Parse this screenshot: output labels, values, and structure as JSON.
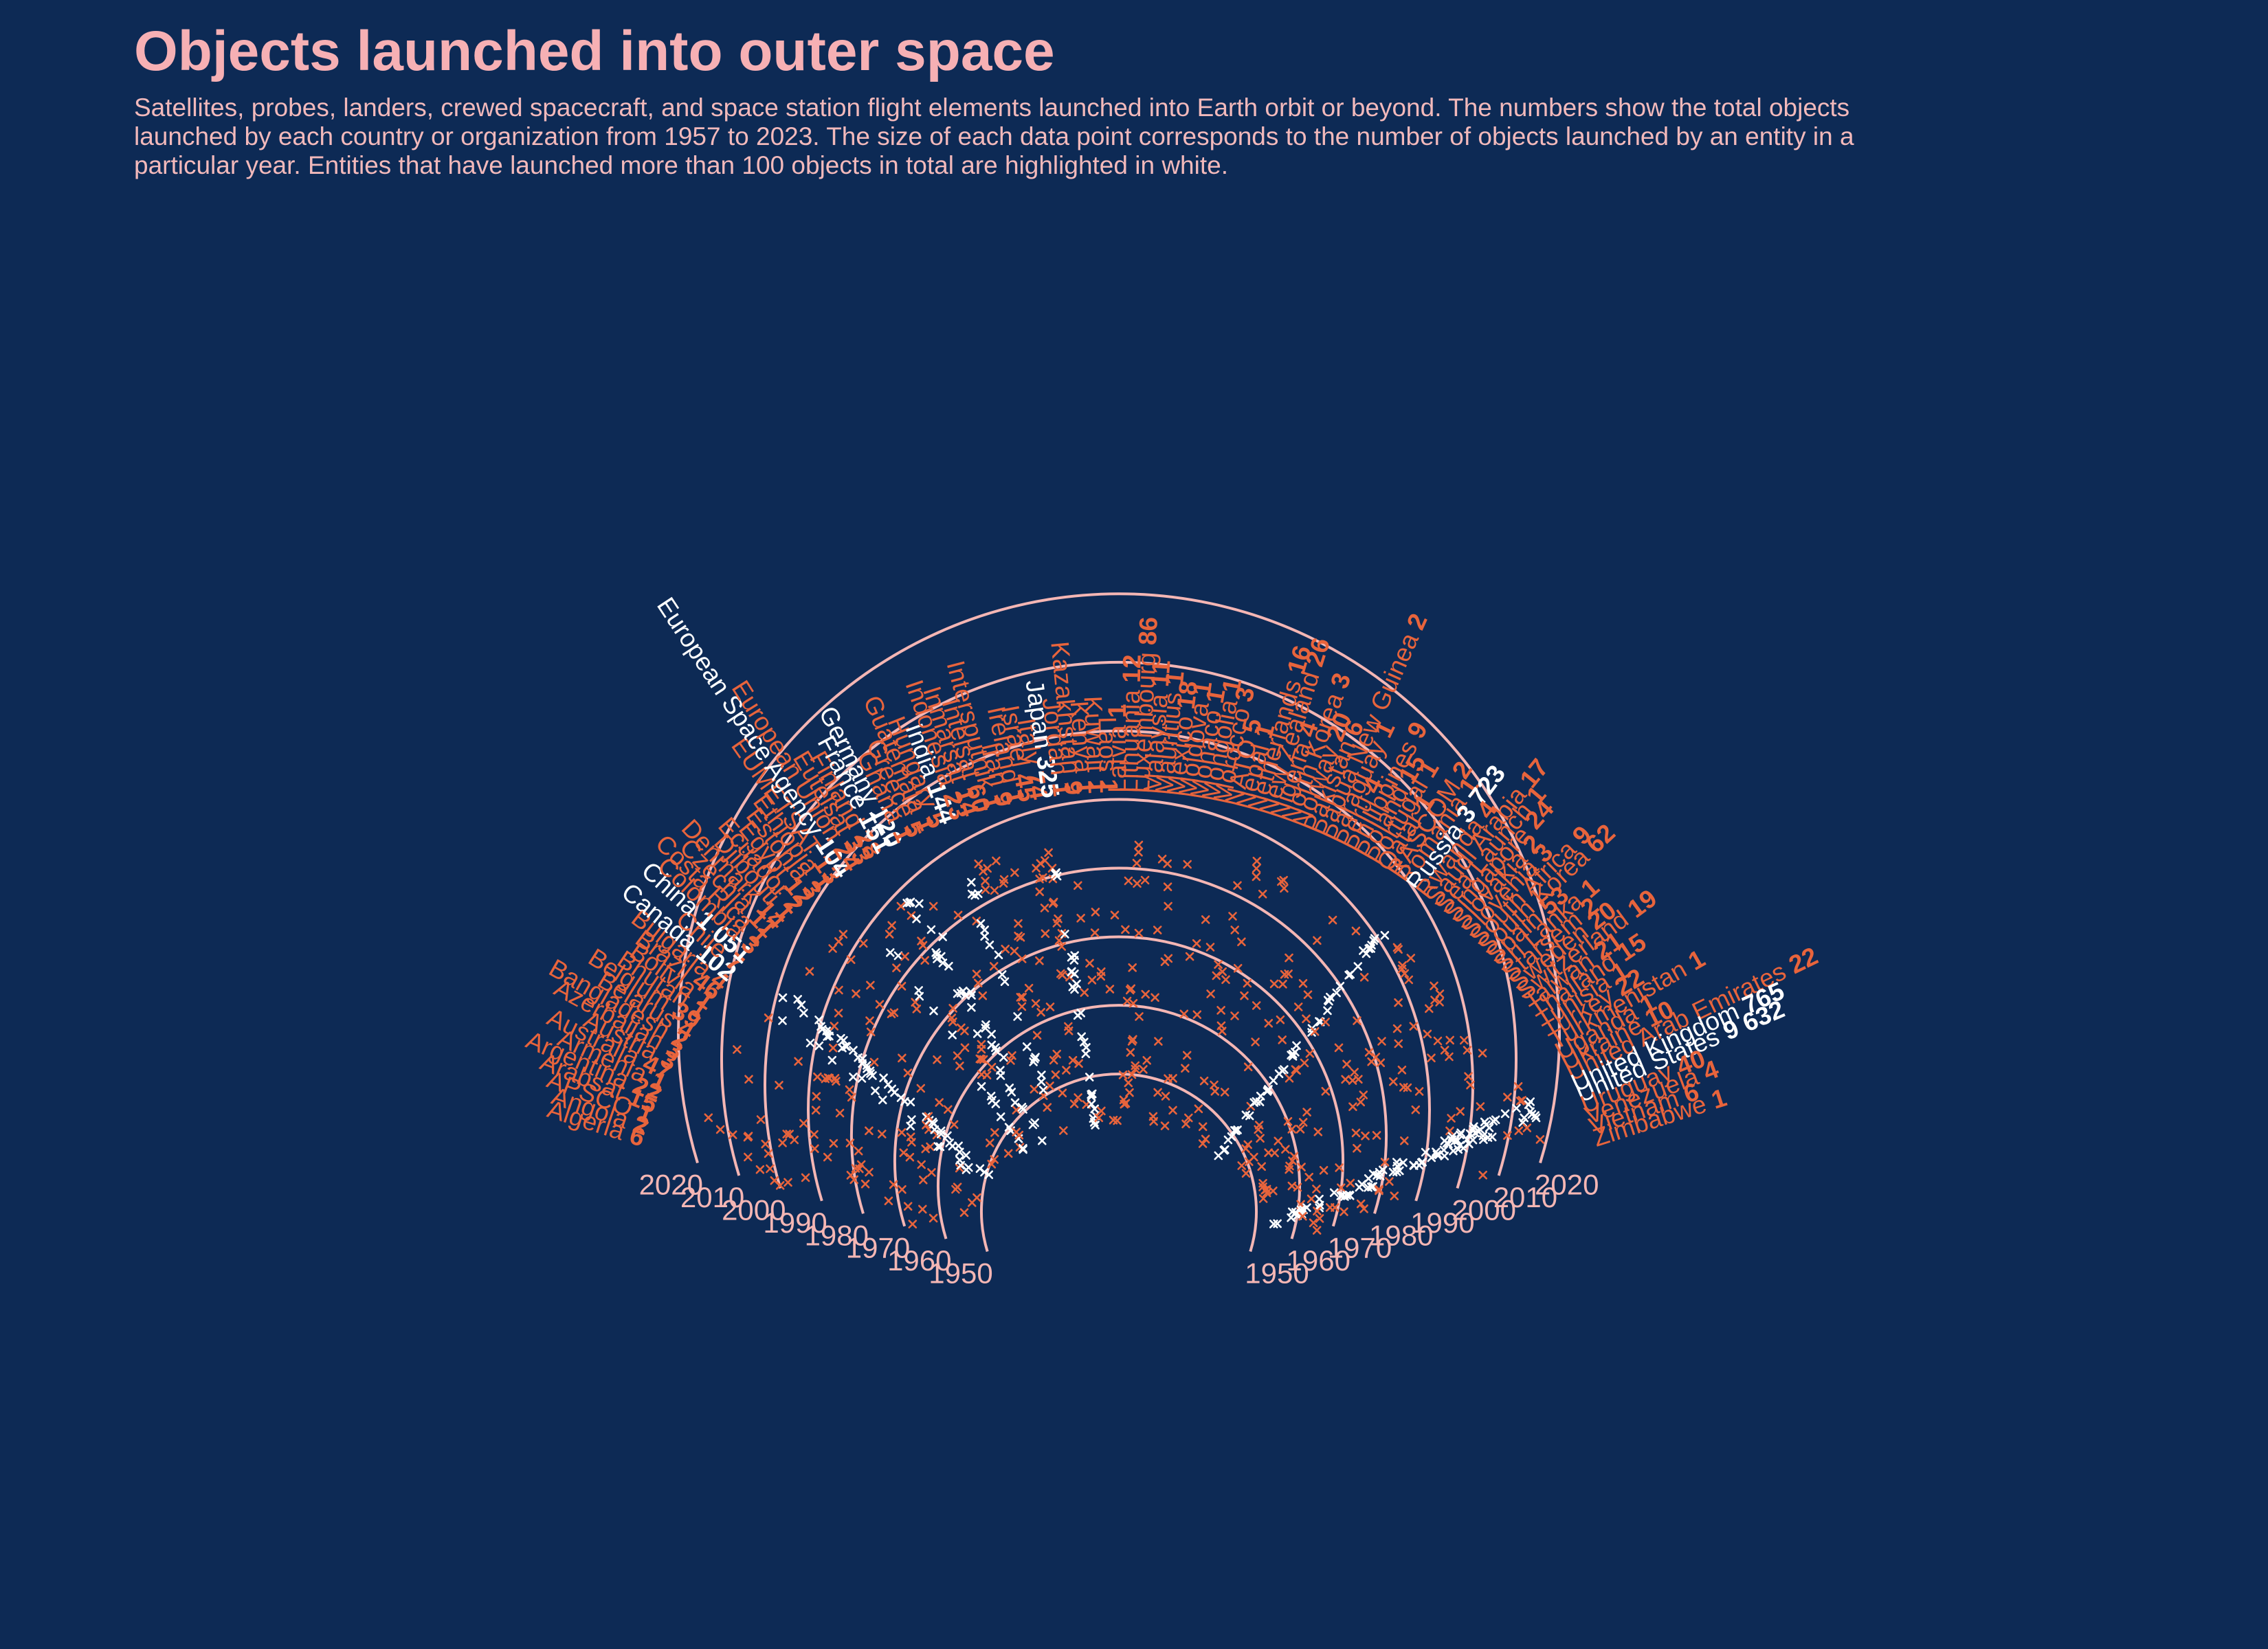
{
  "title": "Objects launched into outer space",
  "subtitle": "Satellites, probes, landers, crewed spacecraft, and space station flight elements launched into Earth orbit or beyond. The numbers show the total objects launched by each country or organization from 1957 to 2023. The size of each data point corresponds to the number of objects launched by an entity in a particular year. Entities that have launched more than 100 objects in total are highlighted in white.",
  "colors": {
    "background": "#0d2a55",
    "highlight": "#ffffff",
    "default": "#e8643c",
    "ring": "#f4b6b4",
    "title": "#f6b0b4"
  },
  "chart_data": {
    "type": "scatter",
    "layout": "radial-semicircle",
    "year_rings": [
      1950,
      1960,
      1970,
      1980,
      1990,
      2000,
      2010,
      2020
    ],
    "year_range": [
      1957,
      2023
    ],
    "highlight_threshold": 100,
    "entities": [
      {
        "name": "Algeria",
        "total": 6,
        "total_label": "6"
      },
      {
        "name": "Angola",
        "total": 2,
        "total_label": "2"
      },
      {
        "name": "APSCO",
        "total": 1,
        "total_label": "1"
      },
      {
        "name": "Arabsat",
        "total": 15,
        "total_label": "15"
      },
      {
        "name": "Argentina",
        "total": 22,
        "total_label": "22"
      },
      {
        "name": "Armenia",
        "total": 1,
        "total_label": "1"
      },
      {
        "name": "Australia",
        "total": 47,
        "total_label": "47"
      },
      {
        "name": "Austria",
        "total": 3,
        "total_label": "3"
      },
      {
        "name": "Azerbaijan",
        "total": 3,
        "total_label": "3"
      },
      {
        "name": "Bangladesh",
        "total": 2,
        "total_label": "2"
      },
      {
        "name": "Belarus",
        "total": 4,
        "total_label": "4"
      },
      {
        "name": "Belgium",
        "total": 39,
        "total_label": "39"
      },
      {
        "name": "Bhutan",
        "total": 1,
        "total_label": "1"
      },
      {
        "name": "Bolivia",
        "total": 1,
        "total_label": "1"
      },
      {
        "name": "Brazil",
        "total": 46,
        "total_label": "46"
      },
      {
        "name": "Bulgaria",
        "total": 4,
        "total_label": "4"
      },
      {
        "name": "Canada",
        "total": 102,
        "total_label": "102"
      },
      {
        "name": "Chile",
        "total": 7,
        "total_label": "7"
      },
      {
        "name": "China",
        "total": 1051,
        "total_label": "1 051"
      },
      {
        "name": "Colombia",
        "total": 3,
        "total_label": "3"
      },
      {
        "name": "Costa Rica",
        "total": 1,
        "total_label": "1"
      },
      {
        "name": "Czechia",
        "total": 11,
        "total_label": "11"
      },
      {
        "name": "Denmark",
        "total": 14,
        "total_label": "14"
      },
      {
        "name": "Djibouti",
        "total": 1,
        "total_label": "1"
      },
      {
        "name": "Ecuador",
        "total": 2,
        "total_label": "2"
      },
      {
        "name": "Egypt",
        "total": 12,
        "total_label": "12"
      },
      {
        "name": "Estonia",
        "total": 3,
        "total_label": "3"
      },
      {
        "name": "Ethiopia",
        "total": 1,
        "total_label": "1"
      },
      {
        "name": "EUMETSAT",
        "total": 13,
        "total_label": "13"
      },
      {
        "name": "European Space Agency",
        "total": 104,
        "total_label": "104"
      },
      {
        "name": "European Union",
        "total": 24,
        "total_label": "24"
      },
      {
        "name": "Eutelsat",
        "total": 33,
        "total_label": "33"
      },
      {
        "name": "Finland",
        "total": 28,
        "total_label": "28"
      },
      {
        "name": "France",
        "total": 151,
        "total_label": "151"
      },
      {
        "name": "Germany",
        "total": 120,
        "total_label": "120"
      },
      {
        "name": "Ghana",
        "total": 1,
        "total_label": "1"
      },
      {
        "name": "Greece",
        "total": 5,
        "total_label": "5"
      },
      {
        "name": "Guatemala",
        "total": 1,
        "total_label": "1"
      },
      {
        "name": "Hungary",
        "total": 5,
        "total_label": "5"
      },
      {
        "name": "India",
        "total": 144,
        "total_label": "144"
      },
      {
        "name": "Indonesia",
        "total": 23,
        "total_label": "23"
      },
      {
        "name": "Inmarsat",
        "total": 14,
        "total_label": "14"
      },
      {
        "name": "Intelsat",
        "total": 60,
        "total_label": "60"
      },
      {
        "name": "Intersputnik",
        "total": 1,
        "total_label": "1"
      },
      {
        "name": "Iran",
        "total": 9,
        "total_label": "9"
      },
      {
        "name": "Ireland",
        "total": 1,
        "total_label": "1"
      },
      {
        "name": "Israel",
        "total": 45,
        "total_label": "45"
      },
      {
        "name": "Italy",
        "total": 74,
        "total_label": "74"
      },
      {
        "name": "Japan",
        "total": 325,
        "total_label": "325"
      },
      {
        "name": "Jordan",
        "total": 1,
        "total_label": "1"
      },
      {
        "name": "Kazakhstan",
        "total": 9,
        "total_label": "9"
      },
      {
        "name": "Kenya",
        "total": 1,
        "total_label": "1"
      },
      {
        "name": "Kuwait",
        "total": 1,
        "total_label": "1"
      },
      {
        "name": "Laos",
        "total": 1,
        "total_label": "1"
      },
      {
        "name": "Latvia",
        "total": 1,
        "total_label": "1"
      },
      {
        "name": "Lithuania",
        "total": 12,
        "total_label": "12"
      },
      {
        "name": "Luxembourg",
        "total": 86,
        "total_label": "86"
      },
      {
        "name": "Malaysia",
        "total": 11,
        "total_label": "11"
      },
      {
        "name": "Mauritius",
        "total": 1,
        "total_label": "1"
      },
      {
        "name": "Mexico",
        "total": 18,
        "total_label": "18"
      },
      {
        "name": "Moldova",
        "total": 1,
        "total_label": "1"
      },
      {
        "name": "Monaco",
        "total": 1,
        "total_label": "1"
      },
      {
        "name": "Mongolia",
        "total": 1,
        "total_label": "1"
      },
      {
        "name": "Morocco",
        "total": 3,
        "total_label": "3"
      },
      {
        "name": "NATO",
        "total": 5,
        "total_label": "5"
      },
      {
        "name": "Nepal",
        "total": 1,
        "total_label": "1"
      },
      {
        "name": "Netherlands",
        "total": 16,
        "total_label": "16"
      },
      {
        "name": "New Zealand",
        "total": 26,
        "total_label": "26"
      },
      {
        "name": "Nigeria",
        "total": 4,
        "total_label": "4"
      },
      {
        "name": "North Korea",
        "total": 3,
        "total_label": "3"
      },
      {
        "name": "Norway",
        "total": 20,
        "total_label": "20"
      },
      {
        "name": "Pakistan",
        "total": 6,
        "total_label": "6"
      },
      {
        "name": "Papua New Guinea",
        "total": 2,
        "total_label": "2"
      },
      {
        "name": "Paraguay",
        "total": 1,
        "total_label": "1"
      },
      {
        "name": "Peru",
        "total": 4,
        "total_label": "4"
      },
      {
        "name": "Philippines",
        "total": 9,
        "total_label": "9"
      },
      {
        "name": "Poland",
        "total": 15,
        "total_label": "15"
      },
      {
        "name": "Portugal",
        "total": 1,
        "total_label": "1"
      },
      {
        "name": "Qatar",
        "total": 1,
        "total_label": "1"
      },
      {
        "name": "RASCOM",
        "total": 2,
        "total_label": "2"
      },
      {
        "name": "Romania",
        "total": 1,
        "total_label": "1"
      },
      {
        "name": "Russia",
        "total": 3723,
        "total_label": "3 723"
      },
      {
        "name": "Rwanda",
        "total": 4,
        "total_label": "4"
      },
      {
        "name": "Saudi Arabia",
        "total": 17,
        "total_label": "17"
      },
      {
        "name": "Sea Launch",
        "total": 1,
        "total_label": "1"
      },
      {
        "name": "Singapore",
        "total": 24,
        "total_label": "24"
      },
      {
        "name": "Slovakia",
        "total": 2,
        "total_label": "2"
      },
      {
        "name": "Slovenia",
        "total": 3,
        "total_label": "3"
      },
      {
        "name": "South Africa",
        "total": 9,
        "total_label": "9"
      },
      {
        "name": "South Korea",
        "total": 62,
        "total_label": "62"
      },
      {
        "name": "Spain",
        "total": 53,
        "total_label": "53"
      },
      {
        "name": "Sri Lanka",
        "total": 1,
        "total_label": "1"
      },
      {
        "name": "Starsem",
        "total": 2,
        "total_label": "2"
      },
      {
        "name": "Sweden",
        "total": 20,
        "total_label": "20"
      },
      {
        "name": "Switzerland",
        "total": 19,
        "total_label": "19"
      },
      {
        "name": "Taiwan",
        "total": 21,
        "total_label": "21"
      },
      {
        "name": "Thailand",
        "total": 15,
        "total_label": "15"
      },
      {
        "name": "Tunisia",
        "total": 1,
        "total_label": "1"
      },
      {
        "name": "Turkey",
        "total": 22,
        "total_label": "22"
      },
      {
        "name": "Turkmenistan",
        "total": 1,
        "total_label": "1"
      },
      {
        "name": "Uganda",
        "total": 1,
        "total_label": "1"
      },
      {
        "name": "Ukraine",
        "total": 10,
        "total_label": "10"
      },
      {
        "name": "United Arab Emirates",
        "total": 22,
        "total_label": "22"
      },
      {
        "name": "United Kingdom",
        "total": 765,
        "total_label": "765"
      },
      {
        "name": "United States",
        "total": 9632,
        "total_label": "9 632"
      },
      {
        "name": "Uruguay",
        "total": 40,
        "total_label": "40"
      },
      {
        "name": "Venezuela",
        "total": 4,
        "total_label": "4"
      },
      {
        "name": "Vietnam",
        "total": 6,
        "total_label": "6"
      },
      {
        "name": "Zimbabwe",
        "total": 1,
        "total_label": "1"
      }
    ]
  }
}
